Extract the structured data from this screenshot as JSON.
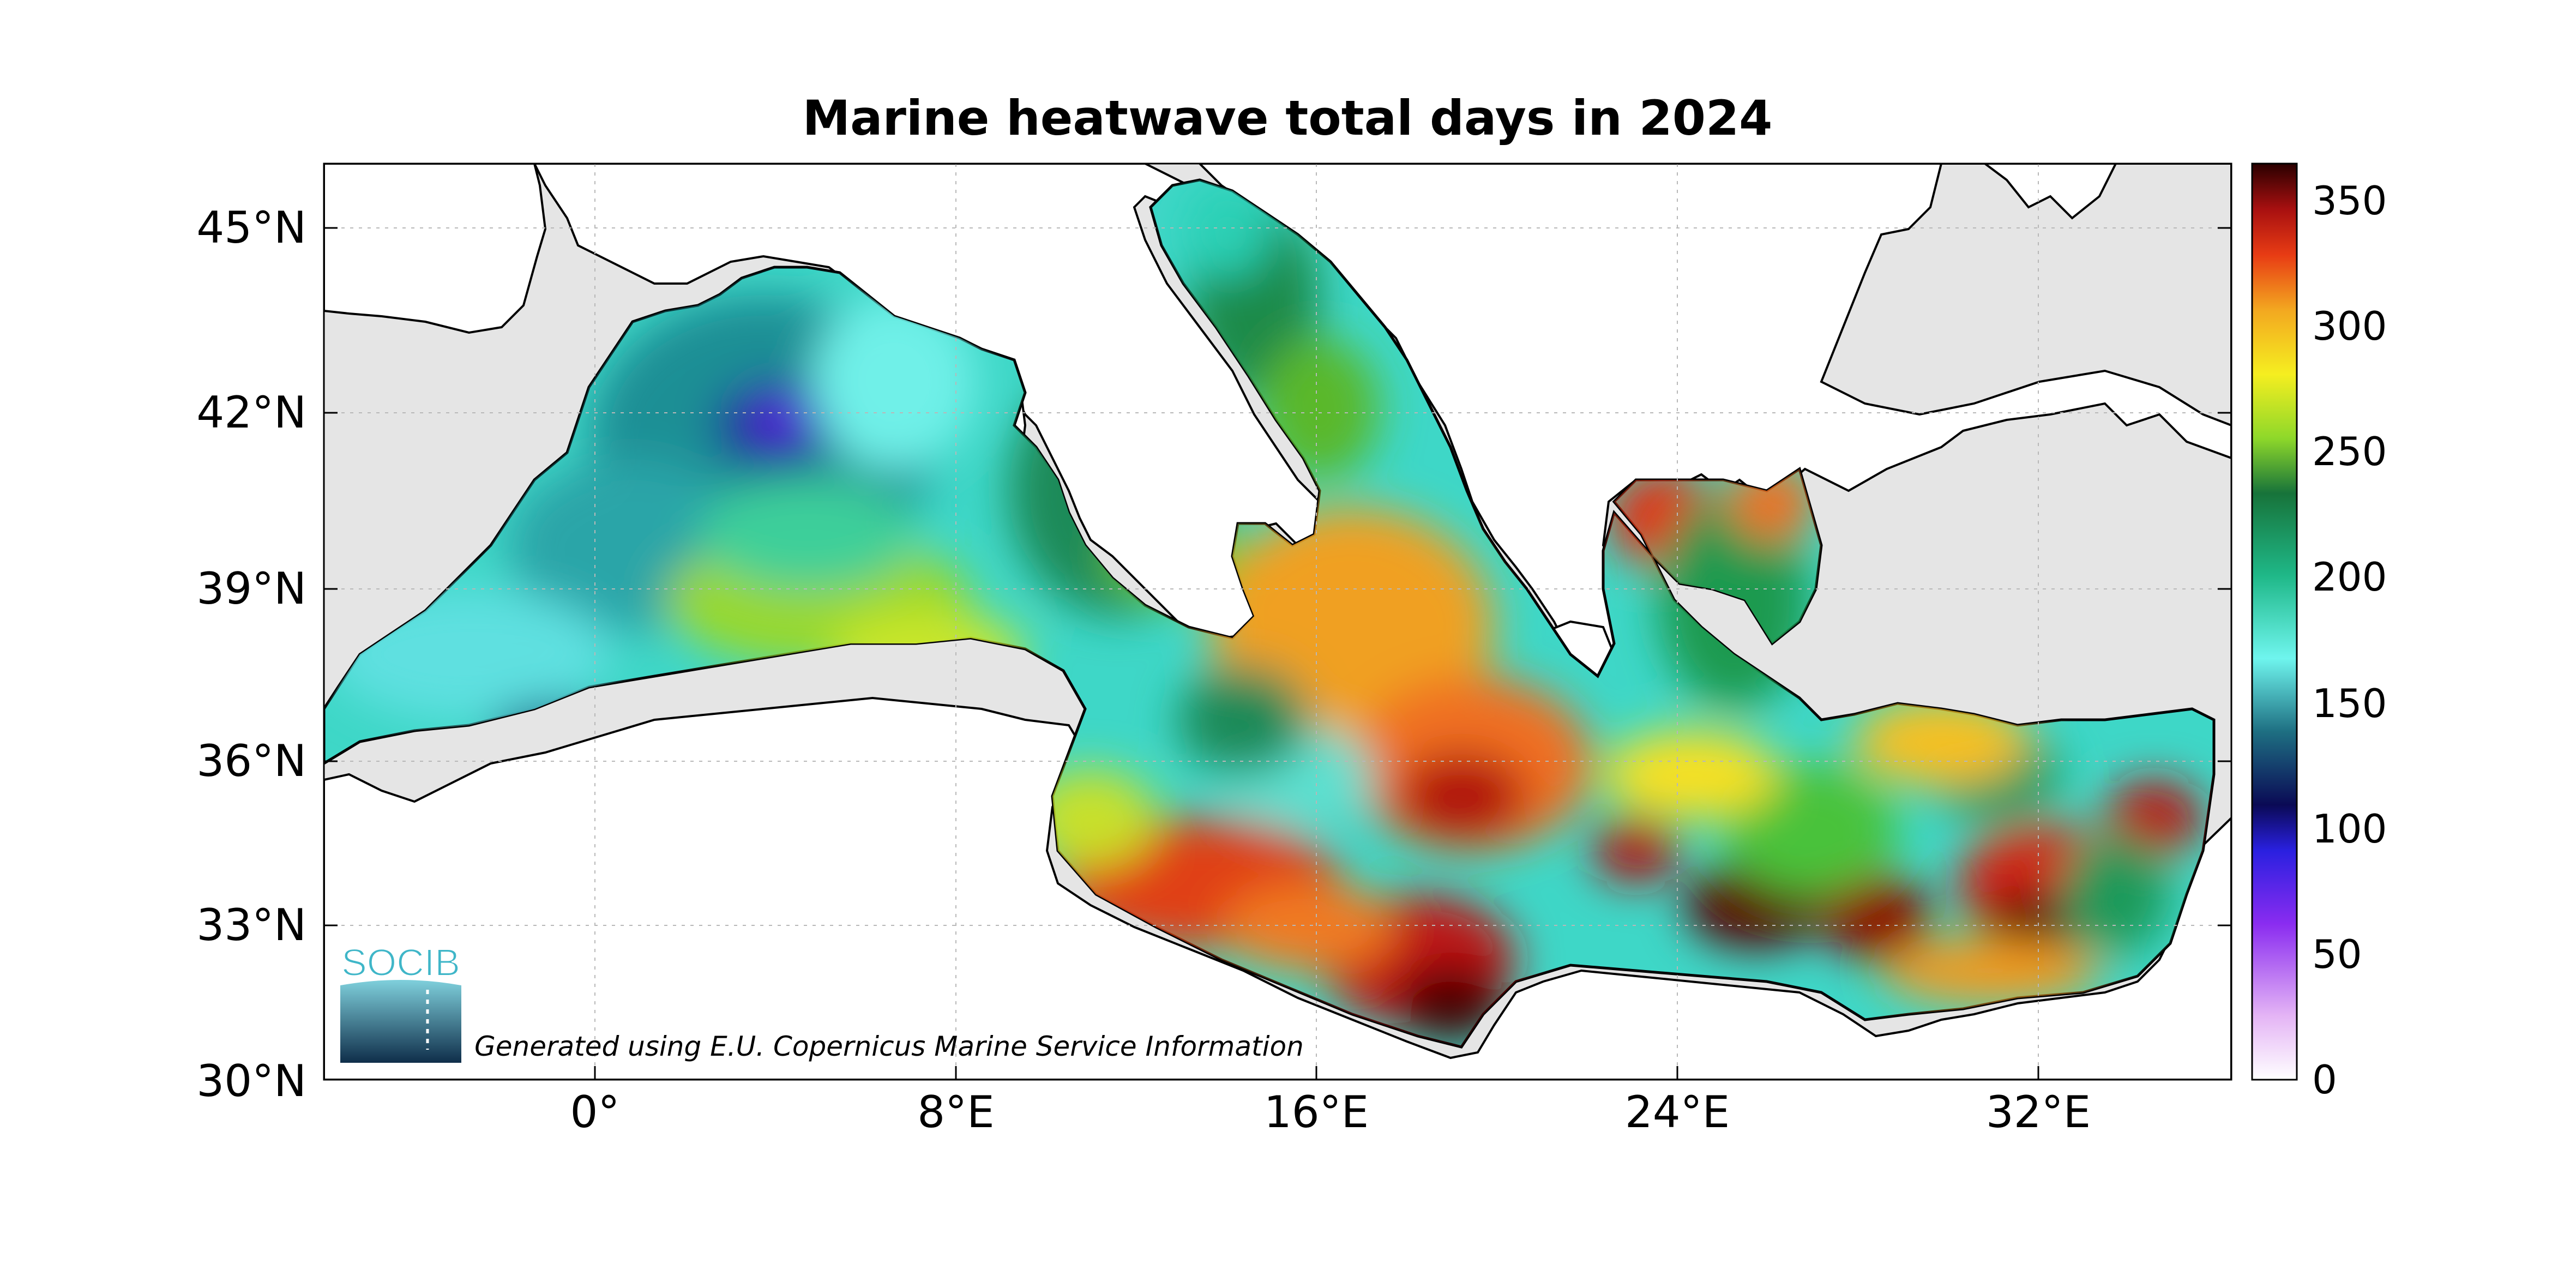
{
  "title": "Marine heatwave total days in 2024",
  "axes": {
    "y_ticks": [
      "45°N",
      "42°N",
      "39°N",
      "36°N",
      "33°N",
      "30°N"
    ],
    "x_ticks": [
      "0°",
      "8°E",
      "16°E",
      "24°E",
      "32°E"
    ],
    "lon_range": [
      -6,
      36.5
    ],
    "lat_range": [
      30,
      46
    ],
    "grid": true
  },
  "colorbar": {
    "ticks": [
      "350",
      "300",
      "250",
      "200",
      "150",
      "100",
      "50",
      "0"
    ],
    "range": [
      0,
      365
    ],
    "palette": [
      "#ffffff",
      "#e4b4f5",
      "#8a2cf0",
      "#2a20e0",
      "#0a0a55",
      "#1e6f82",
      "#6ff5ee",
      "#1fb888",
      "#17733a",
      "#8ed82a",
      "#f5ee20",
      "#f3a820",
      "#e83c14",
      "#a81010",
      "#2a0000"
    ]
  },
  "credit": "Generated using E.U. Copernicus Marine Service Information",
  "logo": {
    "text": "SOCIB",
    "color": "#3fb6c8"
  },
  "colors": {
    "sea_background": "#e5e5e5",
    "land": "#ffffff",
    "coast": "#000000"
  }
}
